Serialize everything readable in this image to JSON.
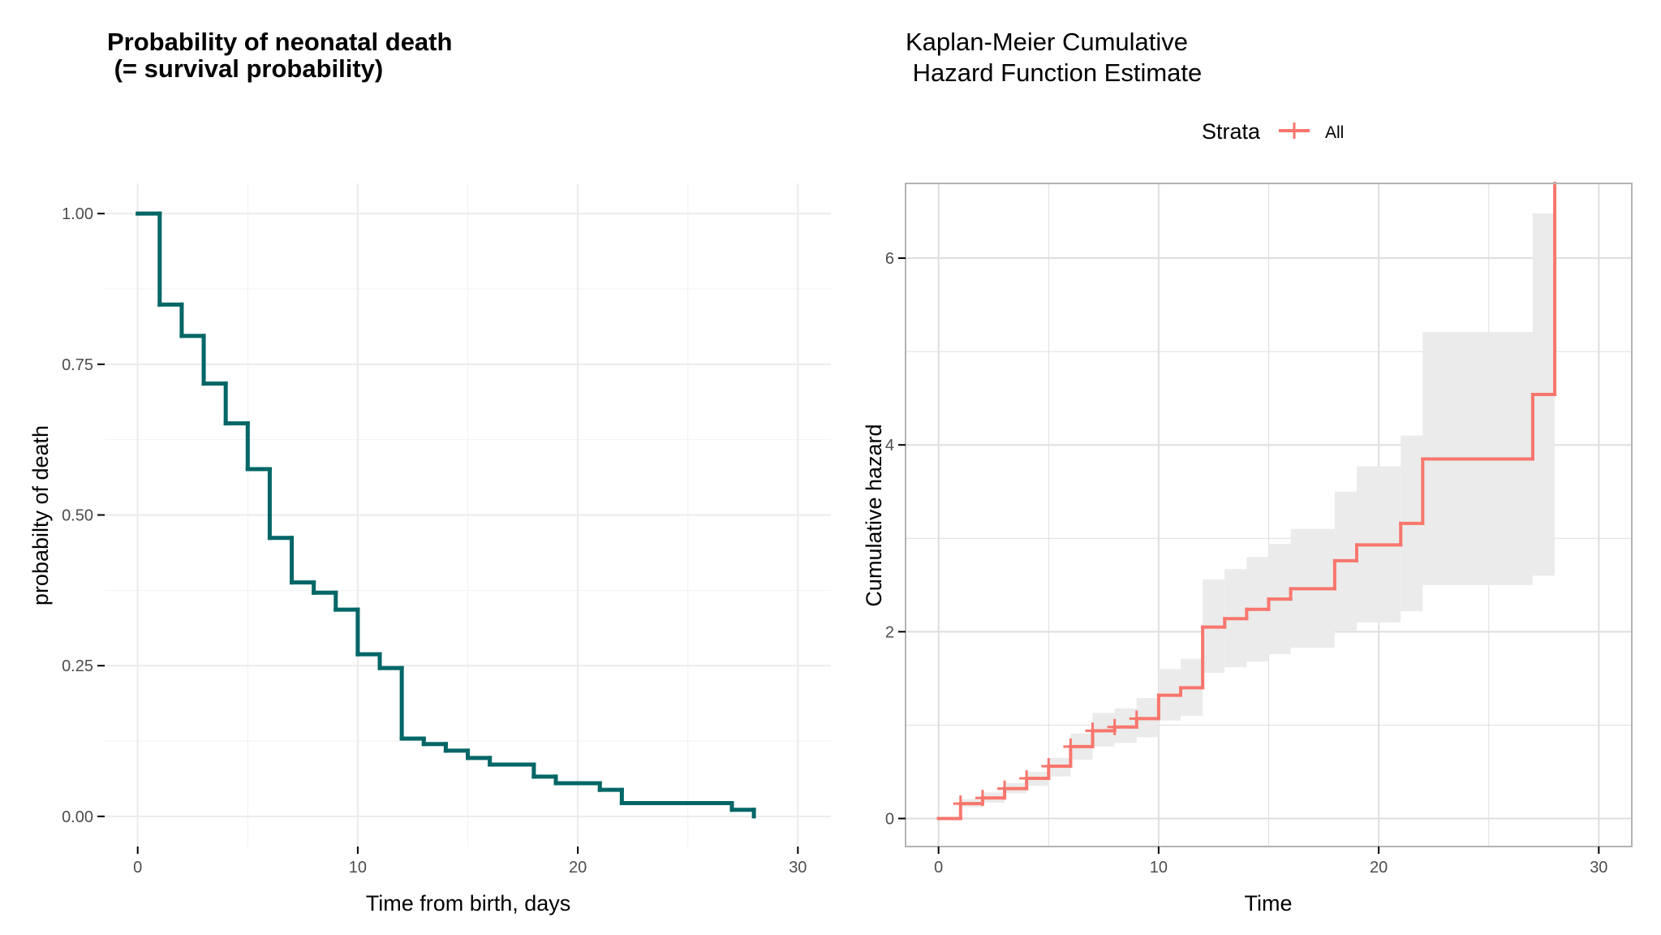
{
  "chart_data": [
    {
      "type": "line",
      "subtype": "step",
      "title_lines": [
        "Probability of neonatal death",
        " (= survival probability)"
      ],
      "xlabel": "Time from birth, days",
      "ylabel": "probabilty of death",
      "xlim": [
        -1.5,
        31.5
      ],
      "ylim": [
        -0.05,
        1.05
      ],
      "x_ticks": [
        0,
        10,
        20,
        30
      ],
      "x_tick_labels": [
        "0",
        "10",
        "20",
        "30"
      ],
      "x_minor_grid": [
        5,
        15,
        25
      ],
      "y_ticks": [
        0,
        0.25,
        0.5,
        0.75,
        1.0
      ],
      "y_tick_labels": [
        "0.00",
        "0.25",
        "0.50",
        "0.75",
        "1.00"
      ],
      "y_minor_grid": [
        0.125,
        0.375,
        0.625,
        0.875
      ],
      "grid": true,
      "panel_border": false,
      "line_color": "#006666",
      "series": [
        {
          "name": "survival",
          "x": [
            0,
            1,
            2,
            3,
            4,
            5,
            6,
            7,
            8,
            9,
            10,
            11,
            12,
            13,
            14,
            15,
            16,
            18,
            19,
            21,
            22,
            27,
            28
          ],
          "y": [
            1.0,
            0.849,
            0.797,
            0.718,
            0.652,
            0.576,
            0.462,
            0.388,
            0.371,
            0.343,
            0.269,
            0.246,
            0.129,
            0.12,
            0.109,
            0.097,
            0.086,
            0.066,
            0.055,
            0.044,
            0.022,
            0.011,
            0.0
          ]
        }
      ]
    },
    {
      "type": "line",
      "subtype": "step",
      "title_lines": [
        "Kaplan-Meier Cumulative",
        " Hazard Function Estimate"
      ],
      "xlabel": "Time",
      "ylabel": "Cumulative hazard",
      "xlim": [
        -1.5,
        31.5
      ],
      "ylim": [
        -0.3,
        6.8
      ],
      "x_ticks": [
        0,
        10,
        20,
        30
      ],
      "x_tick_labels": [
        "0",
        "10",
        "20",
        "30"
      ],
      "x_minor_grid": [
        5,
        15,
        25
      ],
      "y_ticks": [
        0,
        2,
        4,
        6
      ],
      "y_tick_labels": [
        "0",
        "2",
        "4",
        "6"
      ],
      "y_minor_grid": [
        1,
        3,
        5
      ],
      "grid": true,
      "panel_border": true,
      "legend": {
        "title": "Strata",
        "entries": [
          {
            "label": "All",
            "color": "#F8766D"
          }
        ],
        "position": "top"
      },
      "line_color": "#F8766D",
      "ci_fill": "#EBEBEB",
      "series": [
        {
          "name": "All",
          "x": [
            0,
            1,
            2,
            3,
            4,
            5,
            6,
            7,
            8,
            9,
            10,
            11,
            12,
            13,
            14,
            15,
            16,
            18,
            19,
            21,
            22,
            27,
            28
          ],
          "y": [
            0,
            0.16,
            0.22,
            0.32,
            0.43,
            0.56,
            0.77,
            0.94,
            0.98,
            1.07,
            1.32,
            1.4,
            2.05,
            2.14,
            2.24,
            2.35,
            2.46,
            2.76,
            2.93,
            3.16,
            3.85,
            4.54,
            6.8
          ],
          "ci_upper": [
            0,
            0.21,
            0.28,
            0.38,
            0.5,
            0.65,
            0.91,
            1.13,
            1.18,
            1.29,
            1.6,
            1.71,
            2.56,
            2.67,
            2.8,
            2.94,
            3.1,
            3.5,
            3.77,
            4.1,
            5.21,
            6.48,
            null
          ],
          "ci_lower": [
            0,
            0.12,
            0.17,
            0.27,
            0.35,
            0.45,
            0.63,
            0.77,
            0.81,
            0.87,
            1.05,
            1.1,
            1.56,
            1.62,
            1.68,
            1.76,
            1.83,
            2.01,
            2.1,
            2.22,
            2.5,
            2.6,
            null
          ],
          "censor_marks_x": [
            1,
            2,
            3,
            4,
            5,
            6,
            7,
            8,
            9
          ]
        }
      ]
    }
  ]
}
